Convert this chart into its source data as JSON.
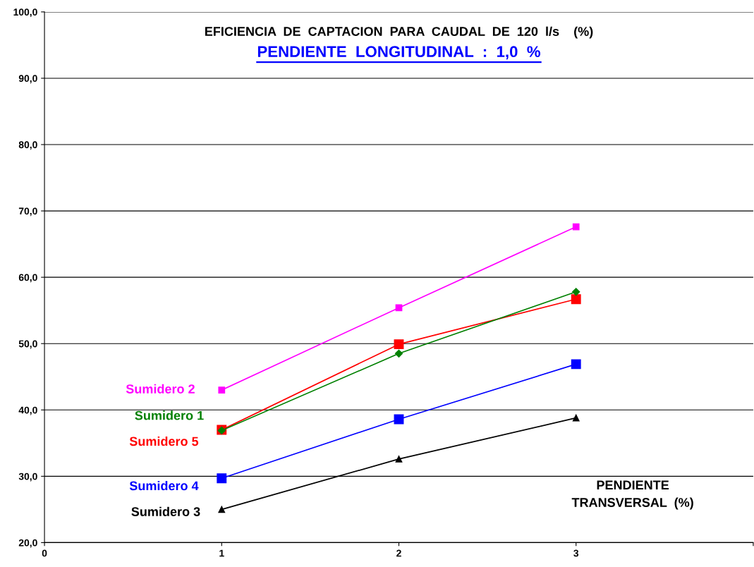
{
  "chart_data": {
    "type": "line",
    "title": "EFICIENCIA  DE  CAPTACION  PARA  CAUDAL  DE  120  l/s    (%)",
    "subtitle": "PENDIENTE  LONGITUDINAL  :  1,0  %",
    "xlabel": "PENDIENTE\nTRANSVERSAL  (%)",
    "x": [
      1,
      2,
      3
    ],
    "series": [
      {
        "name": "Sumidero 2",
        "color": "#ff00ff",
        "marker": "square",
        "values": [
          43.0,
          55.4,
          67.6
        ]
      },
      {
        "name": "Sumidero 1",
        "color": "#008000",
        "marker": "diamond",
        "values": [
          36.9,
          48.5,
          57.8
        ]
      },
      {
        "name": "Sumidero 5",
        "color": "#ff0000",
        "marker": "square",
        "values": [
          37.0,
          49.9,
          56.7
        ]
      },
      {
        "name": "Sumidero 4",
        "color": "#0000ff",
        "marker": "square",
        "values": [
          29.7,
          38.6,
          46.9
        ]
      },
      {
        "name": "Sumidero 3",
        "color": "#000000",
        "marker": "triangle",
        "values": [
          25.0,
          32.6,
          38.8
        ]
      }
    ],
    "xlim": [
      0,
      4
    ],
    "xticks": [
      0,
      1,
      2,
      3,
      {
        "value": 4,
        "label": null
      }
    ],
    "ylim": [
      20,
      100
    ],
    "yticks": [
      {
        "value": 20,
        "label": "20,0"
      },
      {
        "value": 30,
        "label": "30,0"
      },
      {
        "value": 40,
        "label": "40,0"
      },
      {
        "value": 50,
        "label": "50,0"
      },
      {
        "value": 60,
        "label": "60,0"
      },
      {
        "value": 70,
        "label": "70,0"
      },
      {
        "value": 80,
        "label": "80,0"
      },
      {
        "value": 90,
        "label": "90,0"
      },
      {
        "value": 100,
        "label": "100,0"
      }
    ],
    "grid": "y",
    "legend": false,
    "line_style": "solid"
  }
}
